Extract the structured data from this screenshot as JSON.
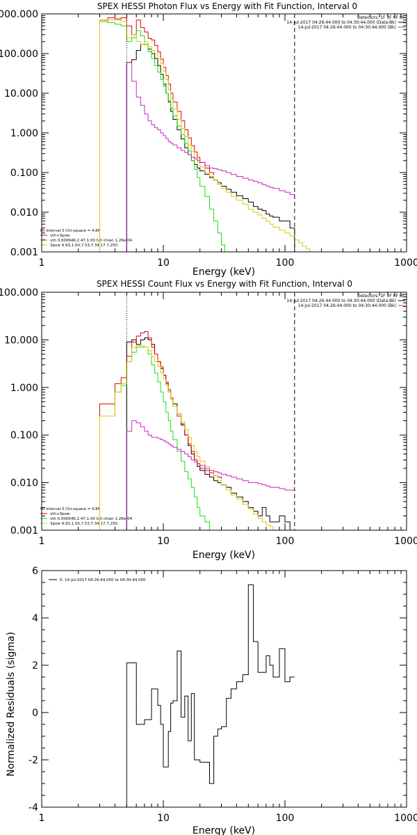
{
  "colors": {
    "black": "#000000",
    "red": "#e00000",
    "green": "#18dd18",
    "yellow": "#dcc800",
    "magenta": "#cc22cc",
    "blue": "#3333ff"
  },
  "chart_data": [
    {
      "type": "line",
      "title": "SPEX HESSI Photon Flux vs Energy with Fit Function, Interval 0",
      "xlabel": "Energy (keV)",
      "ylabel": "",
      "xscale": "log",
      "yscale": "log",
      "xlim": [
        1,
        1000
      ],
      "ylim": [
        0.001,
        1000
      ],
      "x_tick_labels": [
        "1",
        "10",
        "100",
        "1000"
      ],
      "y_tick_labels": [
        "0.001",
        "0.010",
        "0.100",
        "1.000",
        "10.000",
        "100.000",
        "1000.000"
      ],
      "dotted_line_x": 5,
      "dashed_line_x": 120,
      "header": {
        "detectors": "Detectors: 1F 3F 6F 8F",
        "line1": "14-Jul-2017 04:26:44.000 to 04:30:44.000 (Data-Bk)",
        "line2": "14-Jul-2017 04:26:44.000 to 04:30:44.000 (Bk)"
      },
      "legend": {
        "placement": "bottom-left",
        "title": "Fit Interval 0   Chi-square = 4.86",
        "entries": [
          "vth+3pow",
          "vth 0.000646,2.47,1.00  full chian 1.26e-04",
          "3pow 9.93,1.50,7.53,7.34,17.7,250"
        ]
      },
      "series": [
        {
          "name": "Data-Bk",
          "color_key": "black",
          "edges": [
            5,
            5.5,
            6,
            6.5,
            7,
            7.5,
            8,
            8.5,
            9,
            9.5,
            10,
            10.5,
            11,
            11.5,
            12,
            13,
            14,
            15,
            16,
            17,
            18,
            19,
            20,
            22,
            24,
            26,
            28,
            30,
            33,
            36,
            40,
            45,
            50,
            55,
            60,
            65,
            70,
            75,
            80,
            90,
            100,
            110,
            120
          ],
          "values": [
            60,
            70,
            120,
            170,
            170,
            130,
            100,
            75,
            50,
            30,
            17,
            10,
            6,
            3.5,
            2.2,
            1.2,
            0.7,
            0.42,
            0.28,
            0.2,
            0.16,
            0.13,
            0.11,
            0.09,
            0.075,
            0.065,
            0.055,
            0.045,
            0.038,
            0.032,
            0.026,
            0.022,
            0.018,
            0.014,
            0.012,
            0.011,
            0.009,
            0.008,
            0.0075,
            0.006,
            0.006,
            0.004
          ]
        },
        {
          "name": "vth+3pow",
          "color_key": "red",
          "edges": [
            3,
            3.5,
            4,
            4.5,
            5,
            5.5,
            6,
            6.5,
            7,
            7.5,
            8,
            8.5,
            9,
            9.5,
            10,
            10.5,
            11,
            11.5,
            12,
            13,
            14,
            15,
            16,
            17,
            18,
            19,
            20,
            22,
            24,
            26
          ],
          "values": [
            700,
            800,
            750,
            800,
            500,
            300,
            700,
            450,
            350,
            240,
            220,
            160,
            110,
            72,
            45,
            28,
            17,
            10,
            6,
            3.5,
            2,
            1.2,
            0.75,
            0.48,
            0.33,
            0.24,
            0.18,
            0.13,
            0.1,
            0.085
          ]
        },
        {
          "name": "vth",
          "color_key": "green",
          "edges": [
            3,
            3.5,
            4,
            4.5,
            5,
            5.5,
            6,
            6.5,
            7,
            7.5,
            8,
            8.5,
            9,
            9.5,
            10,
            10.5,
            11,
            11.5,
            12,
            13,
            14,
            15,
            16,
            17,
            18,
            19,
            20,
            22,
            24,
            26,
            28,
            30,
            32
          ],
          "values": [
            650,
            600,
            550,
            500,
            200,
            250,
            380,
            280,
            170,
            110,
            75,
            50,
            34,
            22,
            15,
            10,
            6.5,
            4.2,
            2.7,
            1.5,
            0.9,
            0.55,
            0.35,
            0.2,
            0.12,
            0.075,
            0.045,
            0.025,
            0.012,
            0.006,
            0.003,
            0.0015,
            0.001
          ]
        },
        {
          "name": "3pow",
          "color_key": "yellow",
          "edges": [
            3,
            3.5,
            4,
            4.5,
            5,
            5.5,
            6,
            6.5,
            7,
            7.5,
            8,
            8.5,
            9,
            9.5,
            10,
            10.5,
            11,
            11.5,
            12,
            13,
            14,
            15,
            16,
            17,
            18,
            19,
            20,
            22,
            24,
            26,
            28,
            30,
            33,
            36,
            40,
            45,
            50,
            55,
            60,
            65,
            70,
            75,
            80,
            90,
            100,
            110,
            120,
            130,
            140,
            150,
            160,
            175
          ],
          "values": [
            700,
            700,
            700,
            650,
            250,
            300,
            200,
            170,
            200,
            150,
            120,
            100,
            75,
            55,
            35,
            22,
            12,
            7,
            4,
            2.2,
            1.3,
            0.8,
            0.5,
            0.34,
            0.24,
            0.18,
            0.14,
            0.1,
            0.08,
            0.065,
            0.05,
            0.04,
            0.032,
            0.025,
            0.02,
            0.016,
            0.012,
            0.01,
            0.0085,
            0.007,
            0.006,
            0.005,
            0.0042,
            0.0035,
            0.003,
            0.0025,
            0.002,
            0.0017,
            0.0014,
            0.0012,
            0.001
          ]
        },
        {
          "name": "Bk",
          "color_key": "magenta",
          "edges": [
            5,
            5.5,
            6,
            6.5,
            7,
            7.5,
            8,
            8.5,
            9,
            9.5,
            10,
            10.5,
            11,
            11.5,
            12,
            13,
            14,
            15,
            16,
            17,
            18,
            19,
            20,
            22,
            24,
            26,
            28,
            30,
            33,
            36,
            40,
            45,
            50,
            55,
            60,
            65,
            70,
            75,
            80,
            90,
            100,
            110,
            120
          ],
          "values": [
            60,
            20,
            8,
            5,
            3,
            2,
            1.6,
            1.35,
            1.2,
            1.0,
            0.85,
            0.72,
            0.6,
            0.55,
            0.5,
            0.42,
            0.36,
            0.32,
            0.28,
            0.24,
            0.22,
            0.2,
            0.18,
            0.15,
            0.13,
            0.125,
            0.118,
            0.11,
            0.1,
            0.09,
            0.08,
            0.072,
            0.065,
            0.06,
            0.055,
            0.05,
            0.045,
            0.042,
            0.04,
            0.035,
            0.032,
            0.028,
            0.025
          ]
        }
      ]
    },
    {
      "type": "line",
      "title": "SPEX HESSI Count Flux vs Energy with Fit Function, Interval 0",
      "xlabel": "Energy (keV)",
      "ylabel": "",
      "xscale": "log",
      "yscale": "log",
      "xlim": [
        1,
        1000
      ],
      "ylim": [
        0.001,
        100
      ],
      "x_tick_labels": [
        "1",
        "10",
        "100",
        "1000"
      ],
      "y_tick_labels": [
        "0.001",
        "0.010",
        "0.100",
        "1.000",
        "10.000",
        "100.000"
      ],
      "dotted_line_x": 5,
      "dashed_line_x": 120,
      "header": {
        "detectors": "Detectors: 1F 3F 6F 8F",
        "line1": "14-Jul-2017 04:26:44.000 to 04:30:44.000 (Data-Bk)",
        "line2": "14-Jul-2017 04:26:44.000 to 04:30:44.000 (Bk)"
      },
      "legend": {
        "placement": "bottom-left",
        "title": "Fit Interval 0   Chi-square = 4.86",
        "entries": [
          "vth+3pow",
          "vth 0.000646,2.47,1.00  full chian 1.26e-04",
          "3pow 9.93,1.50,7.53,7.34,17.7,250"
        ]
      },
      "series": [
        {
          "name": "Data-Bk",
          "color_key": "black",
          "edges": [
            5,
            5.5,
            6,
            6.5,
            7,
            7.5,
            8,
            8.5,
            9,
            9.5,
            10,
            10.5,
            11,
            11.5,
            12,
            13,
            14,
            15,
            16,
            17,
            18,
            19,
            20,
            22,
            24,
            26,
            28,
            30,
            33,
            36,
            40,
            45,
            50,
            55,
            60,
            65,
            70,
            75,
            80,
            90,
            100,
            110,
            120
          ],
          "values": [
            9,
            10,
            8,
            10,
            11,
            10,
            8,
            5,
            3.5,
            2.5,
            1.8,
            1.2,
            0.8,
            0.6,
            0.45,
            0.28,
            0.17,
            0.1,
            0.06,
            0.04,
            0.03,
            0.022,
            0.018,
            0.015,
            0.013,
            0.011,
            0.01,
            0.009,
            0.008,
            0.006,
            0.005,
            0.004,
            0.003,
            0.0025,
            0.002,
            0.003,
            0.002,
            0.0015,
            0.0015,
            0.002,
            0.0015,
            0.001,
            0.001
          ]
        },
        {
          "name": "vth+3pow",
          "color_key": "red",
          "edges": [
            3,
            3.5,
            4,
            4.5,
            5,
            5.5,
            6,
            6.5,
            7,
            7.5,
            8,
            8.5,
            9,
            9.5,
            10,
            10.5,
            11,
            11.5,
            12,
            13,
            14,
            15,
            16,
            17,
            18,
            19,
            20,
            22,
            24,
            26,
            28,
            30
          ],
          "values": [
            0.45,
            0.45,
            1.2,
            1.6,
            4.5,
            9,
            12,
            14,
            15,
            11,
            7,
            5,
            3.5,
            2.7,
            1.8,
            1.3,
            0.9,
            0.6,
            0.4,
            0.25,
            0.16,
            0.1,
            0.065,
            0.045,
            0.03,
            0.025,
            0.02,
            0.018,
            0.016,
            0.014,
            0.013,
            0.012
          ]
        },
        {
          "name": "vth",
          "color_key": "green",
          "edges": [
            3,
            3.5,
            4,
            4.5,
            5,
            5.5,
            6,
            6.5,
            7,
            7.5,
            8,
            8.5,
            9,
            9.5,
            10,
            10.5,
            11,
            11.5,
            12,
            13,
            14,
            15,
            16,
            17,
            18,
            19,
            20,
            22,
            24,
            26
          ],
          "values": [
            0.25,
            0.25,
            0.8,
            1.1,
            3.5,
            5.5,
            7,
            7,
            7,
            5,
            3,
            2,
            1.3,
            0.8,
            0.5,
            0.3,
            0.2,
            0.12,
            0.08,
            0.045,
            0.028,
            0.017,
            0.012,
            0.008,
            0.005,
            0.003,
            0.002,
            0.0015,
            0.001,
            0.001
          ]
        },
        {
          "name": "3pow",
          "color_key": "yellow",
          "edges": [
            3,
            3.5,
            4,
            4.5,
            5,
            5.5,
            6,
            6.5,
            7,
            7.5,
            8,
            8.5,
            9,
            9.5,
            10,
            10.5,
            11,
            11.5,
            12,
            13,
            14,
            15,
            16,
            17,
            18,
            19,
            20,
            22,
            24,
            26,
            28,
            30,
            33,
            36,
            40,
            45,
            50,
            55,
            60,
            65,
            70,
            75,
            80,
            90,
            100,
            110
          ],
          "values": [
            0.25,
            0.25,
            0.8,
            1.2,
            3.5,
            7,
            7.5,
            7.5,
            7,
            6,
            4.5,
            3.5,
            2.8,
            2,
            1.5,
            1.1,
            0.8,
            0.55,
            0.4,
            0.28,
            0.19,
            0.13,
            0.09,
            0.06,
            0.045,
            0.035,
            0.028,
            0.022,
            0.018,
            0.014,
            0.011,
            0.009,
            0.007,
            0.0055,
            0.0045,
            0.0035,
            0.0028,
            0.0022,
            0.0018,
            0.0015,
            0.0013,
            0.0012,
            0.001,
            0.001,
            0.001,
            0.001
          ]
        },
        {
          "name": "Bk",
          "color_key": "magenta",
          "edges": [
            5,
            5.5,
            6,
            6.5,
            7,
            7.5,
            8,
            8.5,
            9,
            9.5,
            10,
            10.5,
            11,
            11.5,
            12,
            13,
            14,
            15,
            16,
            17,
            18,
            19,
            20,
            22,
            24,
            26,
            28,
            30,
            33,
            36,
            40,
            45,
            50,
            55,
            60,
            65,
            70,
            75,
            80,
            90,
            100,
            110,
            120
          ],
          "values": [
            0.12,
            0.2,
            0.18,
            0.15,
            0.12,
            0.1,
            0.09,
            0.09,
            0.085,
            0.08,
            0.075,
            0.07,
            0.065,
            0.06,
            0.055,
            0.05,
            0.045,
            0.04,
            0.035,
            0.03,
            0.027,
            0.025,
            0.023,
            0.02,
            0.018,
            0.017,
            0.016,
            0.015,
            0.014,
            0.013,
            0.012,
            0.011,
            0.01,
            0.01,
            0.0095,
            0.009,
            0.0085,
            0.008,
            0.008,
            0.0075,
            0.007,
            0.007,
            0.007
          ]
        }
      ]
    },
    {
      "type": "line",
      "title": "",
      "xlabel": "Energy (keV)",
      "ylabel": "Normalized Residuals (sigma)",
      "xscale": "log",
      "yscale": "linear",
      "xlim": [
        1,
        1000
      ],
      "ylim": [
        -4,
        6
      ],
      "x_tick_labels": [
        "1",
        "10",
        "100",
        "1000"
      ],
      "y_tick_labels": [
        "-4",
        "-2",
        "0",
        "2",
        "4",
        "6"
      ],
      "legend": {
        "placement": "top-left",
        "entries": [
          "0. 14-Jul-2017 04:26:44.000 to 04:30:44.000"
        ]
      },
      "series": [
        {
          "name": "0. 14-Jul-2017 04:26:44.000 to 04:30:44.000",
          "color_key": "black",
          "edges": [
            5,
            5.5,
            6,
            6.5,
            7,
            7.5,
            8,
            8.5,
            9,
            9.5,
            10,
            10.5,
            11,
            11.5,
            12,
            13,
            14,
            15,
            16,
            17,
            18,
            19,
            20,
            22,
            24,
            26,
            28,
            30,
            33,
            36,
            40,
            45,
            50,
            55,
            60,
            65,
            70,
            75,
            80,
            90,
            100,
            110,
            120
          ],
          "values": [
            2.1,
            2.1,
            -0.5,
            -0.5,
            -0.3,
            -0.3,
            1.0,
            1.0,
            0.3,
            -0.5,
            -2.3,
            -2.3,
            -0.8,
            0.4,
            0.5,
            2.6,
            -0.2,
            0.7,
            -1.2,
            0.8,
            -2.0,
            -2.0,
            -2.1,
            -2.1,
            -3.0,
            -1.0,
            -0.7,
            -0.6,
            0.6,
            1.0,
            1.3,
            1.6,
            5.4,
            3.0,
            1.7,
            1.7,
            2.4,
            2.0,
            1.5,
            2.7,
            1.3,
            1.5,
            1.5
          ]
        }
      ]
    }
  ]
}
